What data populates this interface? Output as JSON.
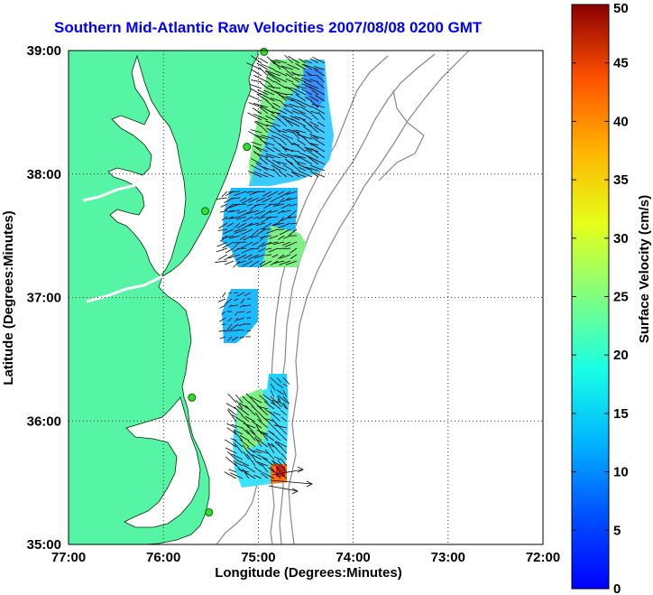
{
  "title": "Southern Mid-Atlantic Raw Velocities 2007/08/08 0200 GMT",
  "map": {
    "xlabel": "Longitude (Degrees:Minutes)",
    "ylabel": "Latitude (Degrees:Minutes)",
    "lon_range": [
      -77,
      -72
    ],
    "lat_range": [
      35,
      39
    ],
    "x_ticks": [
      {
        "lon": -77,
        "label": "77:00"
      },
      {
        "lon": -76,
        "label": "76:00"
      },
      {
        "lon": -75,
        "label": "75:00"
      },
      {
        "lon": -74,
        "label": "74:00"
      },
      {
        "lon": -73,
        "label": "73:00"
      },
      {
        "lon": -72,
        "label": "72:00"
      }
    ],
    "y_ticks": [
      {
        "lat": 35,
        "label": "35:00"
      },
      {
        "lat": 36,
        "label": "36:00"
      },
      {
        "lat": 37,
        "label": "37:00"
      },
      {
        "lat": 38,
        "label": "38:00"
      },
      {
        "lat": 39,
        "label": "39:00"
      }
    ],
    "grid": "dotted",
    "land_color": "#55f5a5",
    "stations": [
      {
        "lon": -74.94,
        "lat": 38.99
      },
      {
        "lon": -75.12,
        "lat": 38.22
      },
      {
        "lon": -75.56,
        "lat": 37.7
      },
      {
        "lon": -75.7,
        "lat": 36.19
      },
      {
        "lon": -75.52,
        "lat": 35.26
      }
    ]
  },
  "colorbar": {
    "label": "Surface Velocity (cm/s)",
    "min": 0,
    "max": 50,
    "ticks": [
      {
        "value": 0,
        "label": "0"
      },
      {
        "value": 5,
        "label": "5"
      },
      {
        "value": 10,
        "label": "10"
      },
      {
        "value": 15,
        "label": "15"
      },
      {
        "value": 20,
        "label": "20"
      },
      {
        "value": 25,
        "label": "25"
      },
      {
        "value": 30,
        "label": "30"
      },
      {
        "value": 35,
        "label": "35"
      },
      {
        "value": 40,
        "label": "40"
      },
      {
        "value": 45,
        "label": "45"
      },
      {
        "value": 50,
        "label": "50"
      }
    ]
  }
}
